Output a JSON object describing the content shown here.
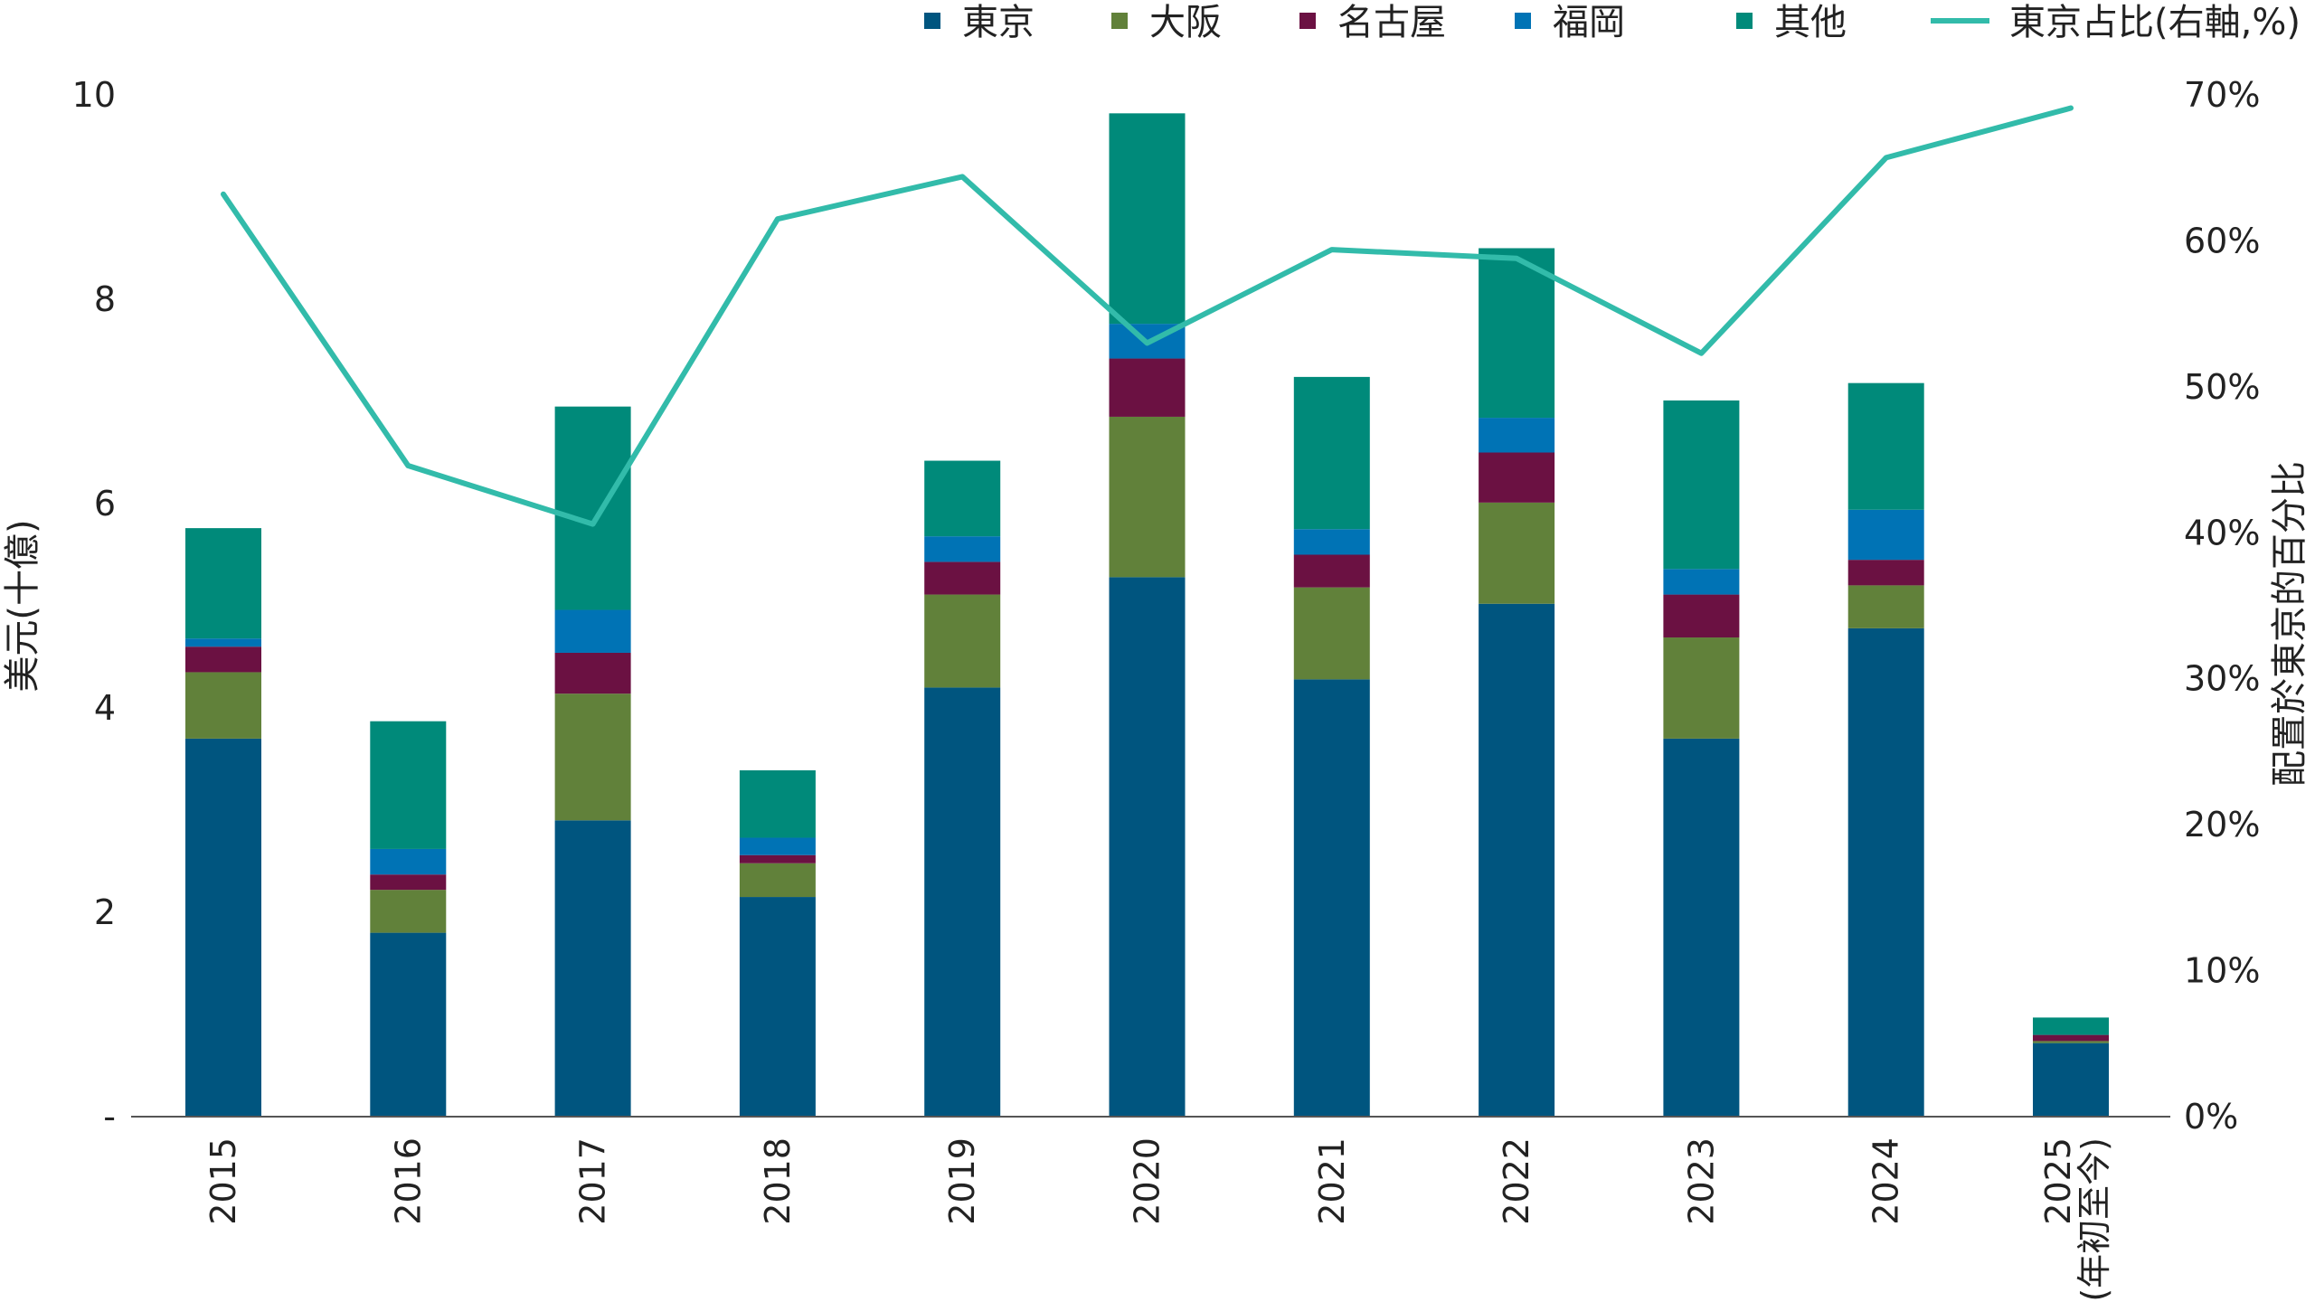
{
  "chart_data": {
    "type": "bar",
    "stacked": true,
    "title": "",
    "categories": [
      "2015",
      "2016",
      "2017",
      "2018",
      "2019",
      "2020",
      "2021",
      "2022",
      "2023",
      "2024",
      "2025"
    ],
    "category_sublabels": [
      "",
      "",
      "",
      "",
      "",
      "",
      "",
      "",
      "",
      "",
      "(年初至今)"
    ],
    "ylabel": "美元(十億)",
    "ylim": [
      0,
      10
    ],
    "yticks": [
      "-",
      "2",
      "4",
      "6",
      "8",
      "10"
    ],
    "y2label": "配置於東京的百分比",
    "y2lim": [
      0,
      70
    ],
    "y2ticks": [
      "0%",
      "10%",
      "20%",
      "30%",
      "40%",
      "50%",
      "60%",
      "70%"
    ],
    "legend_position": "top",
    "series": [
      {
        "name": "東京",
        "color": "#00557f",
        "values": [
          3.7,
          1.8,
          2.9,
          2.15,
          4.2,
          5.28,
          4.28,
          5.02,
          3.7,
          4.78,
          0.72
        ]
      },
      {
        "name": "大阪",
        "color": "#61813a",
        "values": [
          0.65,
          0.42,
          1.24,
          0.33,
          0.91,
          1.57,
          0.9,
          0.99,
          0.99,
          0.42,
          0.02
        ]
      },
      {
        "name": "名古屋",
        "color": "#6b1142",
        "values": [
          0.25,
          0.15,
          0.4,
          0.08,
          0.32,
          0.57,
          0.32,
          0.49,
          0.42,
          0.25,
          0.06
        ]
      },
      {
        "name": "福岡",
        "color": "#0073b5",
        "values": [
          0.08,
          0.25,
          0.42,
          0.17,
          0.25,
          0.34,
          0.25,
          0.34,
          0.25,
          0.49,
          0.0
        ]
      },
      {
        "name": "其他",
        "color": "#008a7a",
        "values": [
          1.08,
          1.25,
          1.99,
          0.66,
          0.74,
          2.06,
          1.49,
          1.66,
          1.65,
          1.24,
          0.17
        ]
      }
    ],
    "line_series": {
      "name": "東京占比(右軸,%)",
      "axis": "right",
      "color": "#32bbaa",
      "values": [
        63.2,
        44.6,
        40.6,
        61.5,
        64.4,
        53.0,
        59.4,
        58.8,
        52.3,
        65.7,
        69.1
      ]
    }
  }
}
